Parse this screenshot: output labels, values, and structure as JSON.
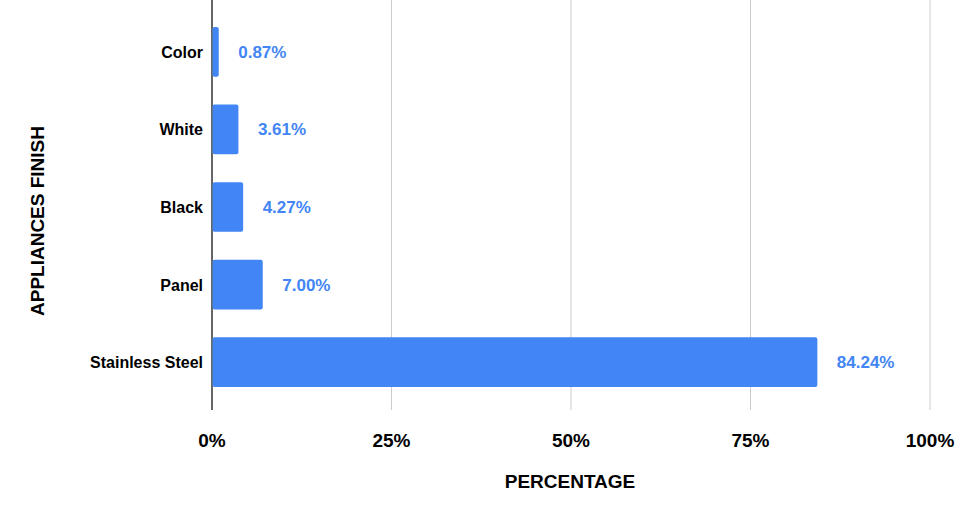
{
  "chart_data": {
    "type": "bar",
    "orientation": "horizontal",
    "x_label": "PERCENTAGE",
    "y_label": "APPLIANCES FINISH",
    "categories": [
      "Color",
      "White",
      "Black",
      "Panel",
      "Stainless Steel"
    ],
    "values": [
      0.87,
      3.61,
      4.27,
      7.0,
      84.24
    ],
    "value_labels": [
      "0.87%",
      "3.61%",
      "4.27%",
      "7.00%",
      "84.24%"
    ],
    "color": "#4285f4",
    "xlim": [
      0,
      100
    ],
    "xticks": [
      {
        "value": 0,
        "label": "0%"
      },
      {
        "value": 25,
        "label": "25%"
      },
      {
        "value": 50,
        "label": "50%"
      },
      {
        "value": 75,
        "label": "75%"
      },
      {
        "value": 100,
        "label": "100%"
      }
    ],
    "grid": true,
    "data_labels": true
  }
}
